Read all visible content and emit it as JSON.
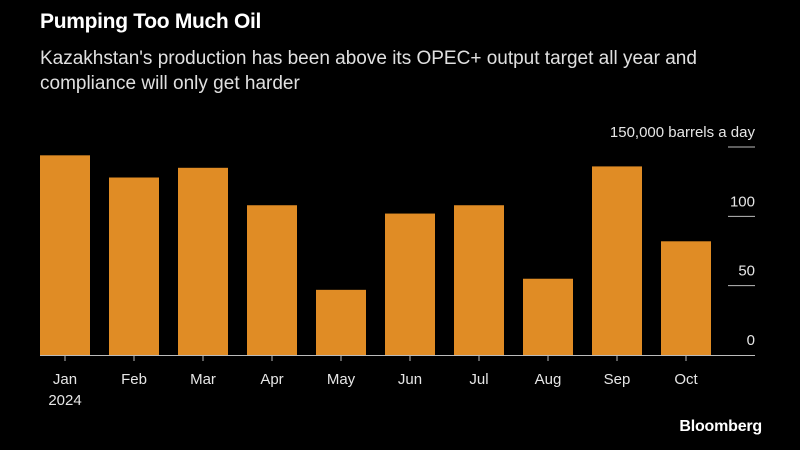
{
  "header": {
    "title": "Pumping Too Much Oil",
    "subtitle": "Kazakhstan's production has been above its OPEC+ output target all year and compliance will only get harder"
  },
  "footer": {
    "brand": "Bloomberg"
  },
  "colors": {
    "bar": "#E08C25",
    "background": "#000000",
    "text": "#FFFFFF",
    "axis": "#BBBBBB"
  },
  "chart_data": {
    "type": "bar",
    "categories": [
      "Jan",
      "Feb",
      "Mar",
      "Apr",
      "May",
      "Jun",
      "Jul",
      "Aug",
      "Sep",
      "Oct"
    ],
    "x_sublabel": "2024",
    "values": [
      144,
      128,
      135,
      108,
      47,
      102,
      108,
      55,
      136,
      82
    ],
    "ylabel": "barrels a day",
    "ylim": [
      0,
      150
    ],
    "yticks": [
      {
        "value": 150,
        "label": "150,000 barrels a day"
      },
      {
        "value": 100,
        "label": "100"
      },
      {
        "value": 50,
        "label": "50"
      },
      {
        "value": 0,
        "label": "0"
      }
    ],
    "y_axis_side": "right",
    "grid": false
  }
}
